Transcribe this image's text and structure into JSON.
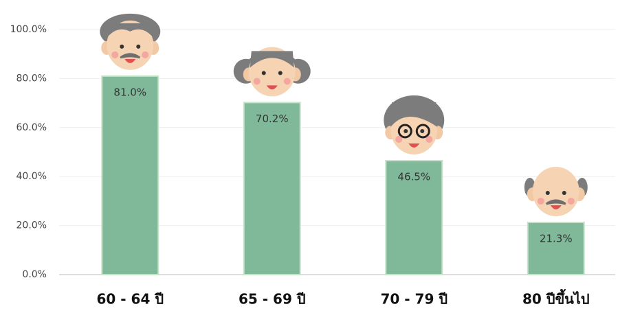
{
  "chart_data": {
    "type": "bar",
    "categories": [
      "60 - 64 ปี",
      "65 - 69 ปี",
      "70 - 79 ปี",
      "80 ปีขึ้นไป"
    ],
    "values": [
      81.0,
      70.2,
      46.5,
      21.3
    ],
    "value_labels": [
      "81.0%",
      "70.2%",
      "46.5%",
      "21.3%"
    ],
    "color": "#80b99a",
    "ylim": [
      0,
      100
    ],
    "yticks": [
      {
        "value": 0,
        "label": "0.0%"
      },
      {
        "value": 20,
        "label": "20.0%"
      },
      {
        "value": 40,
        "label": "40.0%"
      },
      {
        "value": 60,
        "label": "60.0%"
      },
      {
        "value": 80,
        "label": "80.0%"
      },
      {
        "value": 100,
        "label": "100.0%"
      }
    ],
    "grid": true
  }
}
